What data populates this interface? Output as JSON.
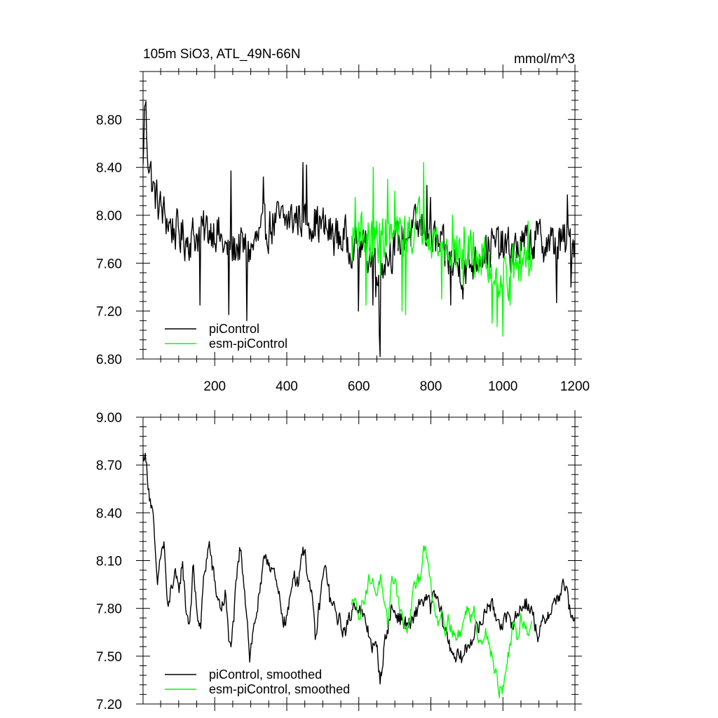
{
  "chart_data": [
    {
      "type": "line",
      "title": "105m SiO3, ATL_49N-66N",
      "units": "mmol/m^3",
      "xlim": [
        1,
        1200
      ],
      "ylim": [
        6.8,
        9.2
      ],
      "xticks": [
        200,
        400,
        600,
        800,
        1000,
        1200
      ],
      "yticks": [
        6.8,
        7.2,
        7.6,
        8.0,
        8.4,
        8.8
      ],
      "ytick_labels": [
        "6.80",
        "7.20",
        "7.60",
        "8.00",
        "8.40",
        "8.80"
      ],
      "xtick_labels": [
        "200",
        "400",
        "600",
        "800",
        "1000",
        "1200"
      ],
      "legend": {
        "location": "bottom-left",
        "entries": [
          "piControl",
          "esm-piControl"
        ]
      },
      "series": [
        {
          "name": "piControl",
          "color": "#000000",
          "x_range": [
            1,
            1200
          ],
          "anchors": [
            [
              1,
              8.35
            ],
            [
              4,
              8.8
            ],
            [
              8,
              9.0
            ],
            [
              12,
              8.6
            ],
            [
              20,
              8.4
            ],
            [
              30,
              8.2
            ],
            [
              50,
              8.05
            ],
            [
              80,
              7.9
            ],
            [
              120,
              7.8
            ],
            [
              160,
              7.85
            ],
            [
              200,
              7.9
            ],
            [
              240,
              7.65
            ],
            [
              260,
              7.75
            ],
            [
              300,
              7.7
            ],
            [
              330,
              7.85
            ],
            [
              370,
              7.95
            ],
            [
              400,
              7.95
            ],
            [
              440,
              8.0
            ],
            [
              480,
              7.95
            ],
            [
              520,
              7.85
            ],
            [
              560,
              7.8
            ],
            [
              600,
              7.75
            ],
            [
              640,
              7.65
            ],
            [
              660,
              7.6
            ],
            [
              700,
              7.75
            ],
            [
              740,
              7.85
            ],
            [
              780,
              7.9
            ],
            [
              820,
              7.75
            ],
            [
              860,
              7.6
            ],
            [
              900,
              7.55
            ],
            [
              940,
              7.7
            ],
            [
              980,
              7.75
            ],
            [
              1020,
              7.7
            ],
            [
              1060,
              7.75
            ],
            [
              1100,
              7.8
            ],
            [
              1140,
              7.75
            ],
            [
              1200,
              7.8
            ]
          ],
          "noise_amplitude": 0.2,
          "spikes": [
            [
              10,
              8.95
            ],
            [
              160,
              7.25
            ],
            [
              240,
              7.17
            ],
            [
              245,
              8.37
            ],
            [
              290,
              7.12
            ],
            [
              335,
              8.32
            ],
            [
              445,
              8.44
            ],
            [
              455,
              8.42
            ],
            [
              600,
              7.2
            ],
            [
              640,
              7.25
            ],
            [
              648,
              7.32
            ],
            [
              657,
              7.0
            ],
            [
              660,
              6.82
            ],
            [
              790,
              8.25
            ],
            [
              800,
              8.15
            ],
            [
              855,
              7.25
            ],
            [
              890,
              7.3
            ],
            [
              1150,
              7.27
            ],
            [
              1180,
              8.17
            ],
            [
              1190,
              7.4
            ]
          ]
        },
        {
          "name": "esm-piControl",
          "color": "#00ff00",
          "x_range": [
            580,
            1080
          ],
          "anchors": [
            [
              580,
              7.75
            ],
            [
              600,
              7.9
            ],
            [
              640,
              7.75
            ],
            [
              670,
              7.85
            ],
            [
              700,
              7.8
            ],
            [
              740,
              7.85
            ],
            [
              770,
              7.95
            ],
            [
              790,
              7.95
            ],
            [
              820,
              7.75
            ],
            [
              860,
              7.7
            ],
            [
              900,
              7.7
            ],
            [
              940,
              7.65
            ],
            [
              980,
              7.5
            ],
            [
              1000,
              7.5
            ],
            [
              1030,
              7.55
            ],
            [
              1060,
              7.65
            ],
            [
              1080,
              7.7
            ]
          ],
          "noise_amplitude": 0.22,
          "spikes": [
            [
              590,
              8.15
            ],
            [
              620,
              7.25
            ],
            [
              640,
              8.4
            ],
            [
              660,
              7.5
            ],
            [
              680,
              8.3
            ],
            [
              700,
              8.2
            ],
            [
              720,
              7.2
            ],
            [
              730,
              7.17
            ],
            [
              780,
              8.44
            ],
            [
              830,
              7.3
            ],
            [
              860,
              8.0
            ],
            [
              890,
              7.4
            ],
            [
              940,
              7.5
            ],
            [
              970,
              7.1
            ],
            [
              985,
              7.07
            ],
            [
              1000,
              6.99
            ],
            [
              1020,
              7.25
            ],
            [
              1050,
              7.45
            ],
            [
              1070,
              7.95
            ]
          ]
        }
      ]
    },
    {
      "type": "line",
      "title": "",
      "xlim": [
        1,
        1200
      ],
      "ylim": [
        7.2,
        9.0
      ],
      "xticks": [
        200,
        400,
        600,
        800,
        1000,
        1200
      ],
      "yticks": [
        7.2,
        7.5,
        7.8,
        8.1,
        8.4,
        8.7,
        9.0
      ],
      "ytick_labels": [
        "7.20",
        "7.50",
        "7.80",
        "8.10",
        "8.40",
        "8.70",
        "9.00"
      ],
      "legend": {
        "location": "bottom-left",
        "entries": [
          "piControl, smoothed",
          "esm-piControl, smoothed"
        ]
      },
      "series": [
        {
          "name": "piControl, smoothed",
          "color": "#000000",
          "x_range": [
            1,
            1200
          ],
          "anchors": [
            [
              1,
              8.75
            ],
            [
              5,
              8.78
            ],
            [
              10,
              8.7
            ],
            [
              20,
              8.5
            ],
            [
              28,
              8.38
            ],
            [
              35,
              8.15
            ],
            [
              40,
              7.92
            ],
            [
              50,
              8.15
            ],
            [
              60,
              8.2
            ],
            [
              70,
              7.75
            ],
            [
              80,
              7.95
            ],
            [
              90,
              8.0
            ],
            [
              100,
              7.9
            ],
            [
              110,
              8.1
            ],
            [
              120,
              7.8
            ],
            [
              130,
              7.7
            ],
            [
              140,
              8.05
            ],
            [
              150,
              7.8
            ],
            [
              160,
              7.65
            ],
            [
              170,
              8.0
            ],
            [
              180,
              8.15
            ],
            [
              185,
              8.2
            ],
            [
              200,
              7.95
            ],
            [
              210,
              7.85
            ],
            [
              220,
              7.8
            ],
            [
              230,
              7.9
            ],
            [
              240,
              7.55
            ],
            [
              250,
              7.65
            ],
            [
              260,
              7.95
            ],
            [
              270,
              8.18
            ],
            [
              280,
              8.0
            ],
            [
              290,
              7.75
            ],
            [
              297,
              7.5
            ],
            [
              310,
              7.7
            ],
            [
              330,
              7.95
            ],
            [
              340,
              8.15
            ],
            [
              360,
              8.05
            ],
            [
              380,
              7.85
            ],
            [
              395,
              7.7
            ],
            [
              410,
              7.85
            ],
            [
              420,
              8.05
            ],
            [
              430,
              7.95
            ],
            [
              445,
              8.2
            ],
            [
              460,
              8.0
            ],
            [
              470,
              7.85
            ],
            [
              480,
              7.6
            ],
            [
              490,
              7.8
            ],
            [
              500,
              8.0
            ],
            [
              510,
              8.05
            ],
            [
              520,
              7.85
            ],
            [
              540,
              7.75
            ],
            [
              560,
              7.65
            ],
            [
              570,
              7.7
            ],
            [
              590,
              7.85
            ],
            [
              600,
              7.8
            ],
            [
              620,
              7.7
            ],
            [
              640,
              7.55
            ],
            [
              650,
              7.55
            ],
            [
              660,
              7.35
            ],
            [
              670,
              7.55
            ],
            [
              690,
              7.8
            ],
            [
              710,
              7.75
            ],
            [
              730,
              7.7
            ],
            [
              750,
              7.7
            ],
            [
              770,
              7.85
            ],
            [
              790,
              7.85
            ],
            [
              800,
              7.8
            ],
            [
              810,
              7.9
            ],
            [
              830,
              7.75
            ],
            [
              850,
              7.58
            ],
            [
              860,
              7.53
            ],
            [
              880,
              7.48
            ],
            [
              890,
              7.5
            ],
            [
              900,
              7.55
            ],
            [
              920,
              7.65
            ],
            [
              940,
              7.7
            ],
            [
              960,
              7.85
            ],
            [
              970,
              7.8
            ],
            [
              990,
              7.72
            ],
            [
              1010,
              7.72
            ],
            [
              1030,
              7.72
            ],
            [
              1050,
              7.8
            ],
            [
              1060,
              7.85
            ],
            [
              1080,
              7.78
            ],
            [
              1100,
              7.62
            ],
            [
              1110,
              7.7
            ],
            [
              1120,
              7.75
            ],
            [
              1140,
              7.82
            ],
            [
              1160,
              7.9
            ],
            [
              1170,
              7.95
            ],
            [
              1180,
              7.88
            ],
            [
              1190,
              7.7
            ],
            [
              1200,
              7.78
            ]
          ],
          "noise_amplitude": 0.06
        },
        {
          "name": "esm-piControl, smoothed",
          "color": "#00ff00",
          "x_range": [
            580,
            1080
          ],
          "anchors": [
            [
              580,
              7.8
            ],
            [
              590,
              7.92
            ],
            [
              600,
              7.7
            ],
            [
              610,
              7.85
            ],
            [
              620,
              7.9
            ],
            [
              630,
              7.99
            ],
            [
              640,
              7.95
            ],
            [
              650,
              7.9
            ],
            [
              660,
              7.99
            ],
            [
              670,
              7.8
            ],
            [
              680,
              7.7
            ],
            [
              690,
              7.95
            ],
            [
              700,
              8.0
            ],
            [
              710,
              7.85
            ],
            [
              720,
              7.75
            ],
            [
              730,
              7.65
            ],
            [
              740,
              7.7
            ],
            [
              750,
              7.9
            ],
            [
              760,
              7.95
            ],
            [
              770,
              8.0
            ],
            [
              780,
              8.2
            ],
            [
              790,
              8.1
            ],
            [
              800,
              7.95
            ],
            [
              810,
              7.8
            ],
            [
              820,
              7.72
            ],
            [
              830,
              7.8
            ],
            [
              840,
              7.68
            ],
            [
              850,
              7.73
            ],
            [
              860,
              7.66
            ],
            [
              870,
              7.6
            ],
            [
              880,
              7.65
            ],
            [
              890,
              7.7
            ],
            [
              900,
              7.8
            ],
            [
              910,
              7.75
            ],
            [
              920,
              7.82
            ],
            [
              930,
              7.62
            ],
            [
              940,
              7.55
            ],
            [
              950,
              7.68
            ],
            [
              960,
              7.6
            ],
            [
              970,
              7.48
            ],
            [
              980,
              7.4
            ],
            [
              990,
              7.28
            ],
            [
              1000,
              7.3
            ],
            [
              1010,
              7.45
            ],
            [
              1020,
              7.55
            ],
            [
              1030,
              7.7
            ],
            [
              1040,
              7.6
            ],
            [
              1050,
              7.75
            ],
            [
              1060,
              7.7
            ],
            [
              1070,
              7.65
            ],
            [
              1080,
              7.72
            ]
          ],
          "noise_amplitude": 0.05
        }
      ]
    }
  ]
}
